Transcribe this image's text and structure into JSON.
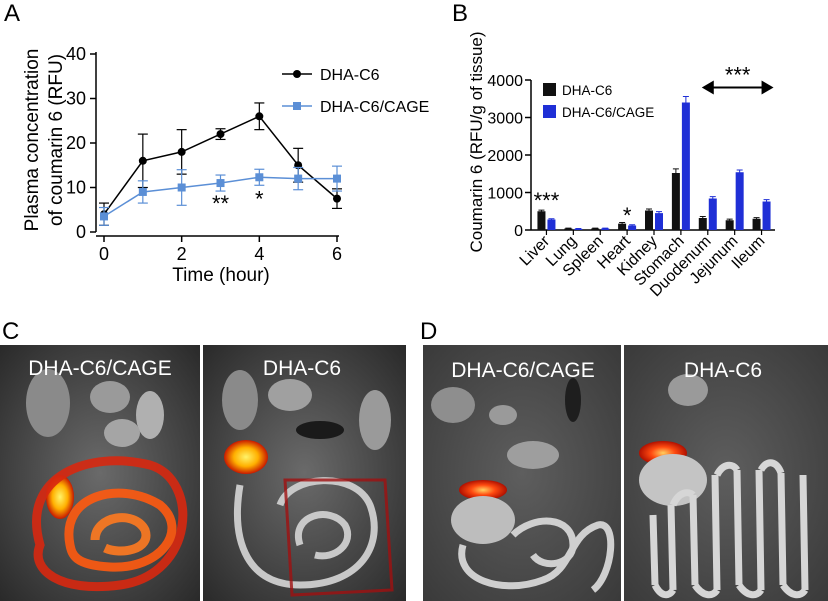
{
  "panels": {
    "A": "A",
    "B": "B",
    "C": "C",
    "D": "D"
  },
  "chart_data": [
    {
      "id": "A",
      "type": "line",
      "xlabel": "Time (hour)",
      "ylabel_line1": "Plasma concentration",
      "ylabel_line2": "of coumarin 6 (RFU)",
      "xlim": [
        0,
        6
      ],
      "ylim": [
        0,
        40
      ],
      "xticks": [
        0,
        2,
        4,
        6
      ],
      "yticks": [
        0,
        10,
        20,
        30,
        40
      ],
      "series": [
        {
          "name": "DHA-C6",
          "color": "#000000",
          "marker": "circle",
          "x": [
            0,
            1,
            2,
            3,
            4,
            5,
            6
          ],
          "y": [
            4,
            16,
            18,
            22,
            26,
            15,
            7.5
          ],
          "err": [
            2.5,
            6,
            5,
            1.2,
            3,
            3.8,
            2.2
          ]
        },
        {
          "name": "DHA-C6/CAGE",
          "color": "#5b8fd6",
          "marker": "square",
          "x": [
            0,
            1,
            2,
            3,
            4,
            5,
            6
          ],
          "y": [
            3.5,
            9,
            10,
            11,
            12.3,
            12,
            12
          ],
          "err": [
            2,
            2.5,
            4,
            1.8,
            1.8,
            2.5,
            2.8
          ]
        }
      ],
      "annotations": [
        {
          "text": "**",
          "x": 3,
          "y": 7
        },
        {
          "text": "*",
          "x": 4,
          "y": 8
        }
      ]
    },
    {
      "id": "B",
      "type": "bar",
      "ylabel": "Coumarin 6 (RFU/g of tissue)",
      "ylim": [
        0,
        4000
      ],
      "yticks": [
        0,
        1000,
        2000,
        3000,
        4000
      ],
      "categories": [
        "Liver",
        "Lung",
        "Spleen",
        "Heart",
        "Kidney",
        "Stomach",
        "Duodenum",
        "Jejunum",
        "Ileum"
      ],
      "series": [
        {
          "name": "DHA-C6",
          "color": "#111111",
          "values": [
            500,
            40,
            40,
            170,
            520,
            1520,
            320,
            260,
            300
          ],
          "err": [
            30,
            10,
            10,
            30,
            40,
            110,
            40,
            30,
            30
          ]
        },
        {
          "name": "DHA-C6/CAGE",
          "color": "#1f2fd6",
          "values": [
            280,
            30,
            40,
            120,
            450,
            3400,
            840,
            1540,
            760
          ],
          "err": [
            20,
            10,
            10,
            20,
            40,
            160,
            50,
            60,
            50
          ]
        }
      ],
      "annotations": [
        {
          "text": "***",
          "category": "Liver",
          "value": 800
        },
        {
          "text": "*",
          "category": "Heart",
          "value": 400
        },
        {
          "text": "***",
          "category_from": "Duodenum",
          "category_to": "Ileum",
          "value": 3800,
          "arrow": "double"
        }
      ]
    }
  ],
  "photos": {
    "C": {
      "left_title": "DHA-C6/CAGE",
      "right_title": "DHA-C6"
    },
    "D": {
      "left_title": "DHA-C6/CAGE",
      "right_title": "DHA-C6"
    }
  }
}
